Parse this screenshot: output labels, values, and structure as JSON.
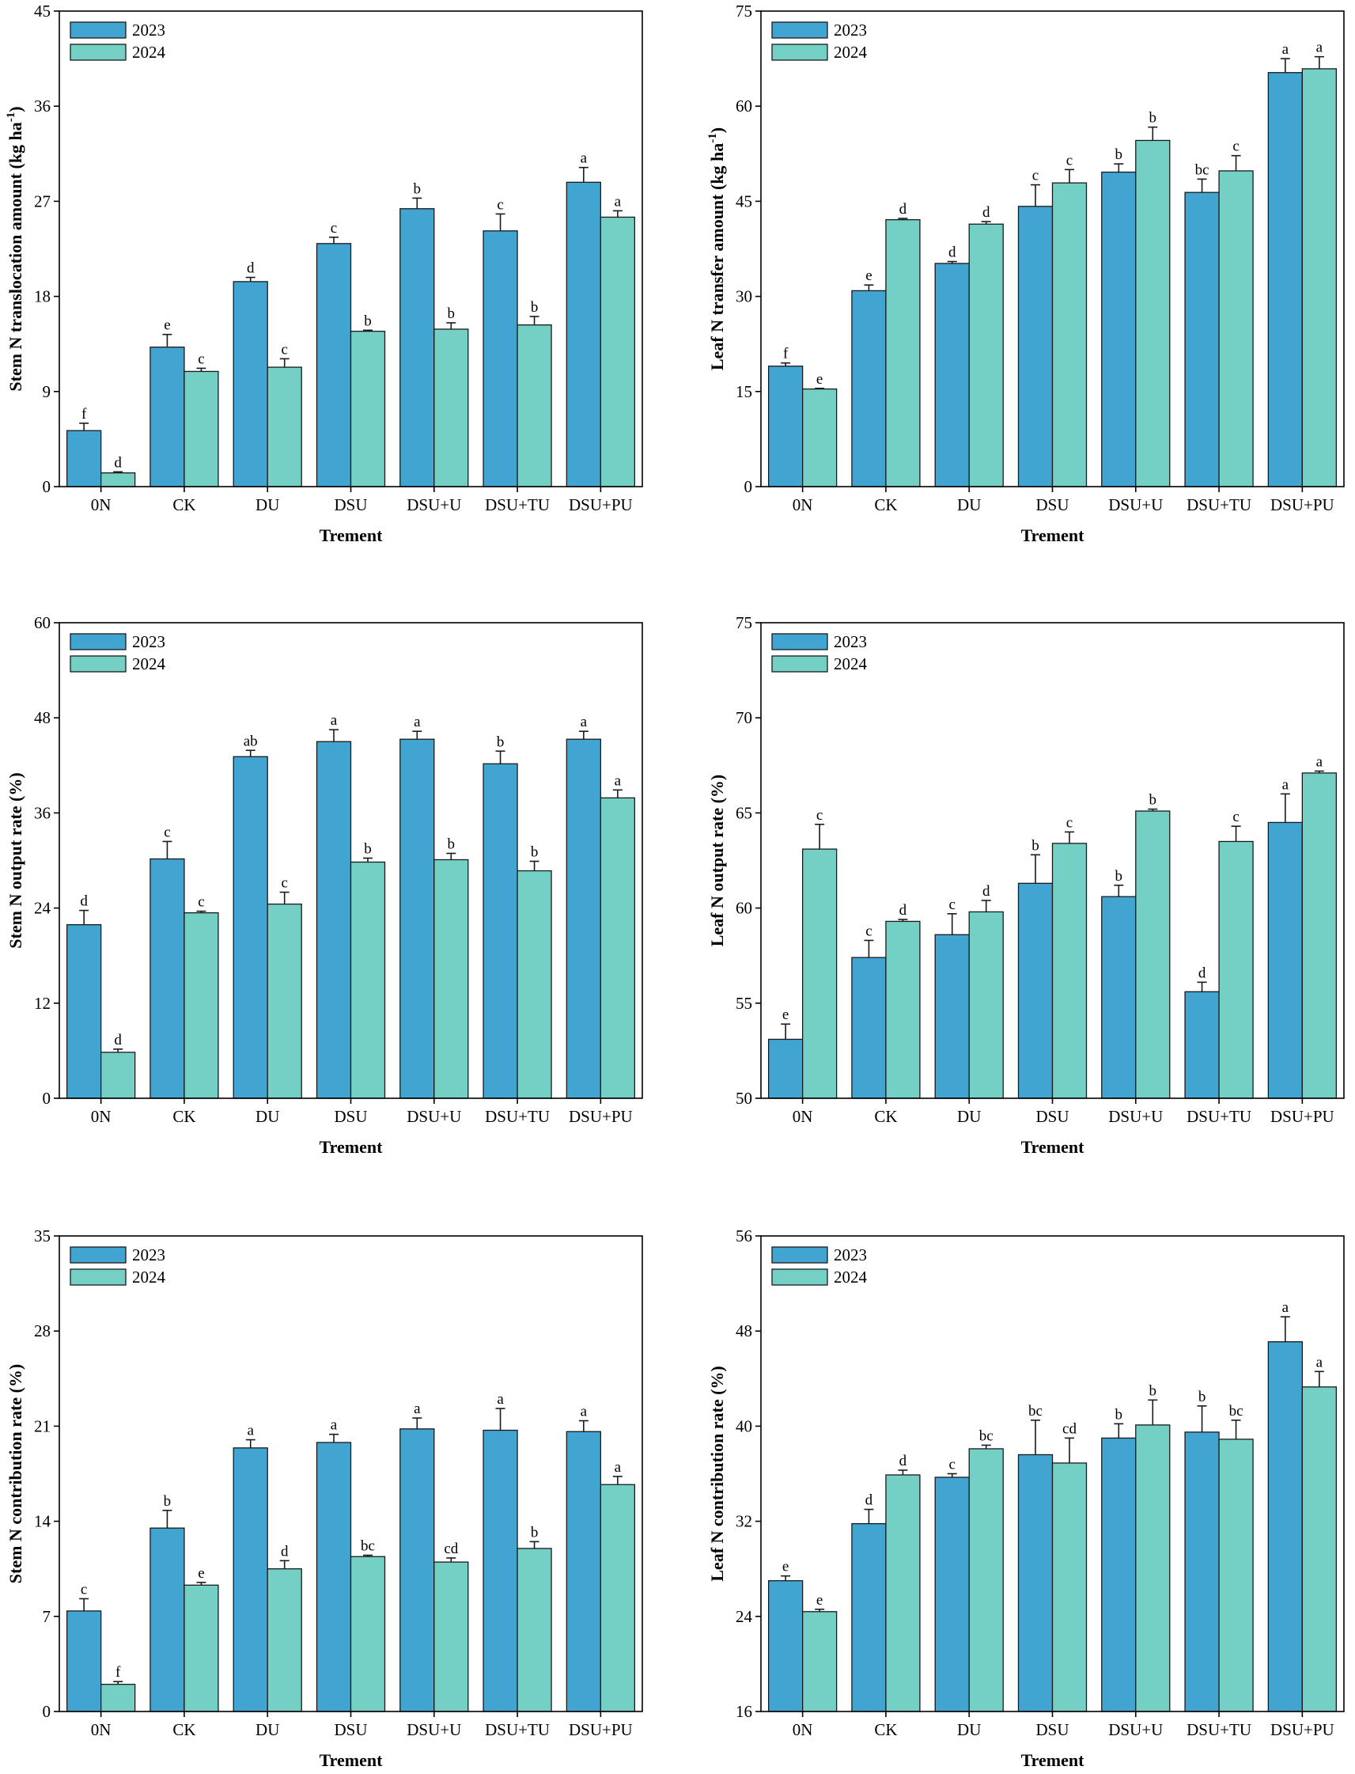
{
  "colors": {
    "series_2023": "#42a4d1",
    "series_2024": "#74d0c5"
  },
  "chart_data": [
    {
      "type": "bar",
      "panel": "top-left",
      "categories": [
        "0N",
        "CK",
        "DU",
        "DSU",
        "DSU+U",
        "DSU+TU",
        "DSU+PU"
      ],
      "xlabel": "Trement",
      "ylabel_main": "Stem  N translocation amount (kg ha",
      "ylabel_sup": "-1",
      "ylabel_tail": ")",
      "ylim": [
        0,
        45
      ],
      "yticks": [
        0,
        9,
        18,
        27,
        36,
        45
      ],
      "legend_position": "top-left",
      "series": [
        {
          "name": "2023",
          "values": [
            5.3,
            13.2,
            19.4,
            23.0,
            26.3,
            24.2,
            28.8
          ],
          "errors": [
            0.7,
            1.2,
            0.4,
            0.6,
            1.0,
            1.6,
            1.4
          ],
          "letters": [
            "f",
            "e",
            "d",
            "c",
            "b",
            "c",
            "a"
          ]
        },
        {
          "name": "2024",
          "values": [
            1.3,
            10.9,
            11.3,
            14.7,
            14.9,
            15.3,
            25.5
          ],
          "errors": [
            0.1,
            0.3,
            0.8,
            0.1,
            0.6,
            0.8,
            0.6
          ],
          "letters": [
            "d",
            "c",
            "c",
            "b",
            "b",
            "b",
            "a"
          ]
        }
      ]
    },
    {
      "type": "bar",
      "panel": "top-right",
      "categories": [
        "0N",
        "CK",
        "DU",
        "DSU",
        "DSU+U",
        "DSU+TU",
        "DSU+PU"
      ],
      "xlabel": "Trement",
      "ylabel_main": "Leaf N transfer amount (kg ha",
      "ylabel_sup": "-1",
      "ylabel_tail": ")",
      "ylim": [
        0,
        75
      ],
      "yticks": [
        0,
        15,
        30,
        45,
        60,
        75
      ],
      "legend_position": "top-left",
      "series": [
        {
          "name": "2023",
          "values": [
            19.0,
            30.9,
            35.2,
            44.2,
            49.6,
            46.4,
            65.3
          ],
          "errors": [
            0.5,
            0.9,
            0.3,
            3.4,
            1.3,
            2.1,
            2.2
          ],
          "letters": [
            "f",
            "e",
            "d",
            "c",
            "b",
            "bc",
            "a"
          ]
        },
        {
          "name": "2024",
          "values": [
            15.4,
            42.1,
            41.4,
            47.9,
            54.6,
            49.8,
            65.9
          ],
          "errors": [
            0.1,
            0.2,
            0.4,
            2.1,
            2.1,
            2.4,
            1.9
          ],
          "letters": [
            "e",
            "d",
            "d",
            "c",
            "b",
            "c",
            "a"
          ]
        }
      ]
    },
    {
      "type": "bar",
      "panel": "middle-left",
      "categories": [
        "0N",
        "CK",
        "DU",
        "DSU",
        "DSU+U",
        "DSU+TU",
        "DSU+PU"
      ],
      "xlabel": "Trement",
      "ylabel_main": "Stem N output rate (%)",
      "ylabel_sup": "",
      "ylabel_tail": "",
      "ylim": [
        0,
        60
      ],
      "yticks": [
        0,
        12,
        24,
        36,
        48,
        60
      ],
      "legend_position": "top-left",
      "series": [
        {
          "name": "2023",
          "values": [
            21.9,
            30.2,
            43.1,
            45.0,
            45.3,
            42.2,
            45.3
          ],
          "errors": [
            1.8,
            2.2,
            0.8,
            1.5,
            1.0,
            1.6,
            1.0
          ],
          "letters": [
            "d",
            "c",
            "ab",
            "a",
            "a",
            "b",
            "a"
          ]
        },
        {
          "name": "2024",
          "values": [
            5.8,
            23.4,
            24.5,
            29.8,
            30.1,
            28.7,
            37.9
          ],
          "errors": [
            0.4,
            0.2,
            1.5,
            0.5,
            0.8,
            1.2,
            1.0
          ],
          "letters": [
            "d",
            "c",
            "c",
            "b",
            "b",
            "b",
            "a"
          ]
        }
      ]
    },
    {
      "type": "bar",
      "panel": "middle-right",
      "categories": [
        "0N",
        "CK",
        "DU",
        "DSU",
        "DSU+U",
        "DSU+TU",
        "DSU+PU"
      ],
      "xlabel": "Trement",
      "ylabel_main": "Leaf N output rate (%)",
      "ylabel_sup": "",
      "ylabel_tail": "",
      "ylim": [
        50,
        75
      ],
      "yticks": [
        50,
        55,
        60,
        65,
        70,
        75
      ],
      "legend_position": "top-left",
      "series": [
        {
          "name": "2023",
          "values": [
            53.1,
            57.4,
            58.6,
            61.3,
            60.6,
            55.6,
            64.5
          ],
          "errors": [
            0.8,
            0.9,
            1.1,
            1.5,
            0.6,
            0.5,
            1.5
          ],
          "letters": [
            "e",
            "c",
            "c",
            "b",
            "b",
            "d",
            "a"
          ]
        },
        {
          "name": "2024",
          "values": [
            63.1,
            59.3,
            59.8,
            63.4,
            65.1,
            63.5,
            67.1
          ],
          "errors": [
            1.3,
            0.1,
            0.6,
            0.6,
            0.1,
            0.8,
            0.1
          ],
          "letters": [
            "c",
            "d",
            "d",
            "c",
            "b",
            "c",
            "a"
          ]
        }
      ]
    },
    {
      "type": "bar",
      "panel": "bottom-left",
      "categories": [
        "0N",
        "CK",
        "DU",
        "DSU",
        "DSU+U",
        "DSU+TU",
        "DSU+PU"
      ],
      "xlabel": "Trement",
      "ylabel_main": "Stem  N contribution rate (%)",
      "ylabel_sup": "",
      "ylabel_tail": "",
      "ylim": [
        0,
        35
      ],
      "yticks": [
        0,
        7,
        14,
        21,
        28,
        35
      ],
      "legend_position": "top-left",
      "series": [
        {
          "name": "2023",
          "values": [
            7.4,
            13.5,
            19.4,
            19.8,
            20.8,
            20.7,
            20.6
          ],
          "errors": [
            0.9,
            1.3,
            0.6,
            0.6,
            0.8,
            1.6,
            0.8
          ],
          "letters": [
            "c",
            "b",
            "a",
            "a",
            "a",
            "a",
            "a"
          ]
        },
        {
          "name": "2024",
          "values": [
            2.0,
            9.3,
            10.5,
            11.4,
            11.0,
            12.0,
            16.7
          ],
          "errors": [
            0.2,
            0.2,
            0.6,
            0.1,
            0.3,
            0.5,
            0.6
          ],
          "letters": [
            "f",
            "e",
            "d",
            "bc",
            "cd",
            "b",
            "a"
          ]
        }
      ]
    },
    {
      "type": "bar",
      "panel": "bottom-right",
      "categories": [
        "0N",
        "CK",
        "DU",
        "DSU",
        "DSU+U",
        "DSU+TU",
        "DSU+PU"
      ],
      "xlabel": "Trement",
      "ylabel_main": "Leaf N contribution rate (%)",
      "ylabel_sup": "",
      "ylabel_tail": "",
      "ylim": [
        16,
        56
      ],
      "yticks": [
        16,
        24,
        32,
        40,
        48,
        56
      ],
      "legend_position": "top-left",
      "series": [
        {
          "name": "2023",
          "values": [
            27.0,
            31.8,
            35.7,
            37.6,
            39.0,
            39.5,
            47.1
          ],
          "errors": [
            0.4,
            1.2,
            0.3,
            2.9,
            1.2,
            2.2,
            2.1
          ],
          "letters": [
            "e",
            "d",
            "c",
            "bc",
            "b",
            "b",
            "a"
          ]
        },
        {
          "name": "2024",
          "values": [
            24.4,
            35.9,
            38.1,
            36.9,
            40.1,
            38.9,
            43.3
          ],
          "errors": [
            0.2,
            0.4,
            0.3,
            2.1,
            2.1,
            1.6,
            1.3
          ],
          "letters": [
            "e",
            "d",
            "bc",
            "cd",
            "b",
            "bc",
            "a"
          ]
        }
      ]
    }
  ]
}
